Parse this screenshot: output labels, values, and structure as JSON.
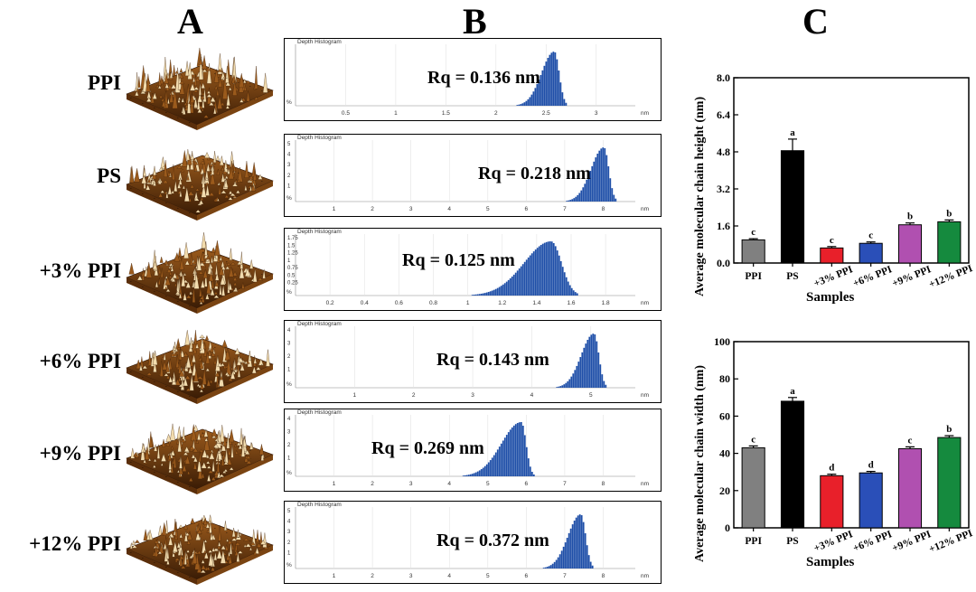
{
  "panel_letters": [
    "A",
    "B",
    "C"
  ],
  "row_labels": [
    "PPI",
    "PS",
    "+3% PPI",
    "+6% PPI",
    "+9% PPI",
    "+12% PPI"
  ],
  "histogram_title": "Depth Histogram",
  "histograms": [
    {
      "rq": "Rq = 0.136 nm",
      "ticks": [
        "0.5",
        "1",
        "1.5",
        "2",
        "2.5",
        "3"
      ],
      "unit": "nm",
      "y_ticks": [],
      "peak_frac": 0.78
    },
    {
      "rq": "Rq = 0.218 nm",
      "ticks": [
        "1",
        "2",
        "3",
        "4",
        "5",
        "6",
        "7",
        "8"
      ],
      "unit": "nm",
      "y_ticks": [
        "5",
        "4",
        "3",
        "2",
        "1"
      ],
      "peak_frac": 0.93
    },
    {
      "rq": "Rq = 0.125 nm",
      "ticks": [
        "0.2",
        "0.4",
        "0.6",
        "0.8",
        "1",
        "1.2",
        "1.4",
        "1.6",
        "1.8"
      ],
      "unit": "nm",
      "y_ticks": [
        "1.75",
        "1.5",
        "1.25",
        "1",
        "0.75",
        "0.5",
        "0.25"
      ],
      "peak_frac": 0.77
    },
    {
      "rq": "Rq = 0.143 nm",
      "ticks": [
        "1",
        "2",
        "3",
        "4",
        "5"
      ],
      "unit": "nm",
      "y_ticks": [
        "4",
        "3",
        "2",
        "1"
      ],
      "peak_frac": 0.9
    },
    {
      "rq": "Rq = 0.269 nm",
      "ticks": [
        "1",
        "2",
        "3",
        "4",
        "5",
        "6",
        "7",
        "8"
      ],
      "unit": "nm",
      "y_ticks": [
        "4",
        "3",
        "2",
        "1"
      ],
      "peak_frac": 0.68
    },
    {
      "rq": "Rq = 0.372 nm",
      "ticks": [
        "1",
        "2",
        "3",
        "4",
        "5",
        "6",
        "7",
        "8"
      ],
      "unit": "nm",
      "y_ticks": [
        "5",
        "4",
        "3",
        "2",
        "1"
      ],
      "peak_frac": 0.86
    }
  ],
  "histogram_y_unit": "%",
  "colors": {
    "histogram": "#1f4fa8",
    "afm_dark": "#3a1c05",
    "afm_mid": "#9a5a1c",
    "afm_light": "#f2dcae"
  },
  "chart_data": [
    {
      "type": "bar",
      "categories": [
        "PPI",
        "PS",
        "+3% PPI",
        "+6% PPI",
        "+9% PPI",
        "+12% PPI"
      ],
      "values": [
        1.0,
        4.85,
        0.65,
        0.85,
        1.65,
        1.78
      ],
      "errors": [
        0.05,
        0.5,
        0.06,
        0.06,
        0.08,
        0.08
      ],
      "significance": [
        "c",
        "a",
        "c",
        "c",
        "b",
        "b"
      ],
      "colors": [
        "#808080",
        "#000000",
        "#e8202a",
        "#2a4fb8",
        "#b050b0",
        "#158a3e"
      ],
      "xlabel": "Samples",
      "ylabel": "Average molecular chain height (nm)",
      "ylim": [
        0.0,
        8.0
      ],
      "yticks": [
        "0.0",
        "1.6",
        "3.2",
        "4.8",
        "6.4",
        "8.0"
      ]
    },
    {
      "type": "bar",
      "categories": [
        "PPI",
        "PS",
        "+3% PPI",
        "+6% PPI",
        "+9% PPI",
        "+12% PPI"
      ],
      "values": [
        43,
        68,
        28,
        29.5,
        42.5,
        48.5
      ],
      "errors": [
        1.0,
        2.0,
        0.8,
        0.8,
        1.0,
        1.0
      ],
      "significance": [
        "c",
        "a",
        "d",
        "d",
        "c",
        "b"
      ],
      "colors": [
        "#808080",
        "#000000",
        "#e8202a",
        "#2a4fb8",
        "#b050b0",
        "#158a3e"
      ],
      "xlabel": "Samples",
      "ylabel": "Average molecular chain width (nm)",
      "ylim": [
        0,
        100
      ],
      "yticks": [
        "0",
        "20",
        "40",
        "60",
        "80",
        "100"
      ]
    }
  ]
}
